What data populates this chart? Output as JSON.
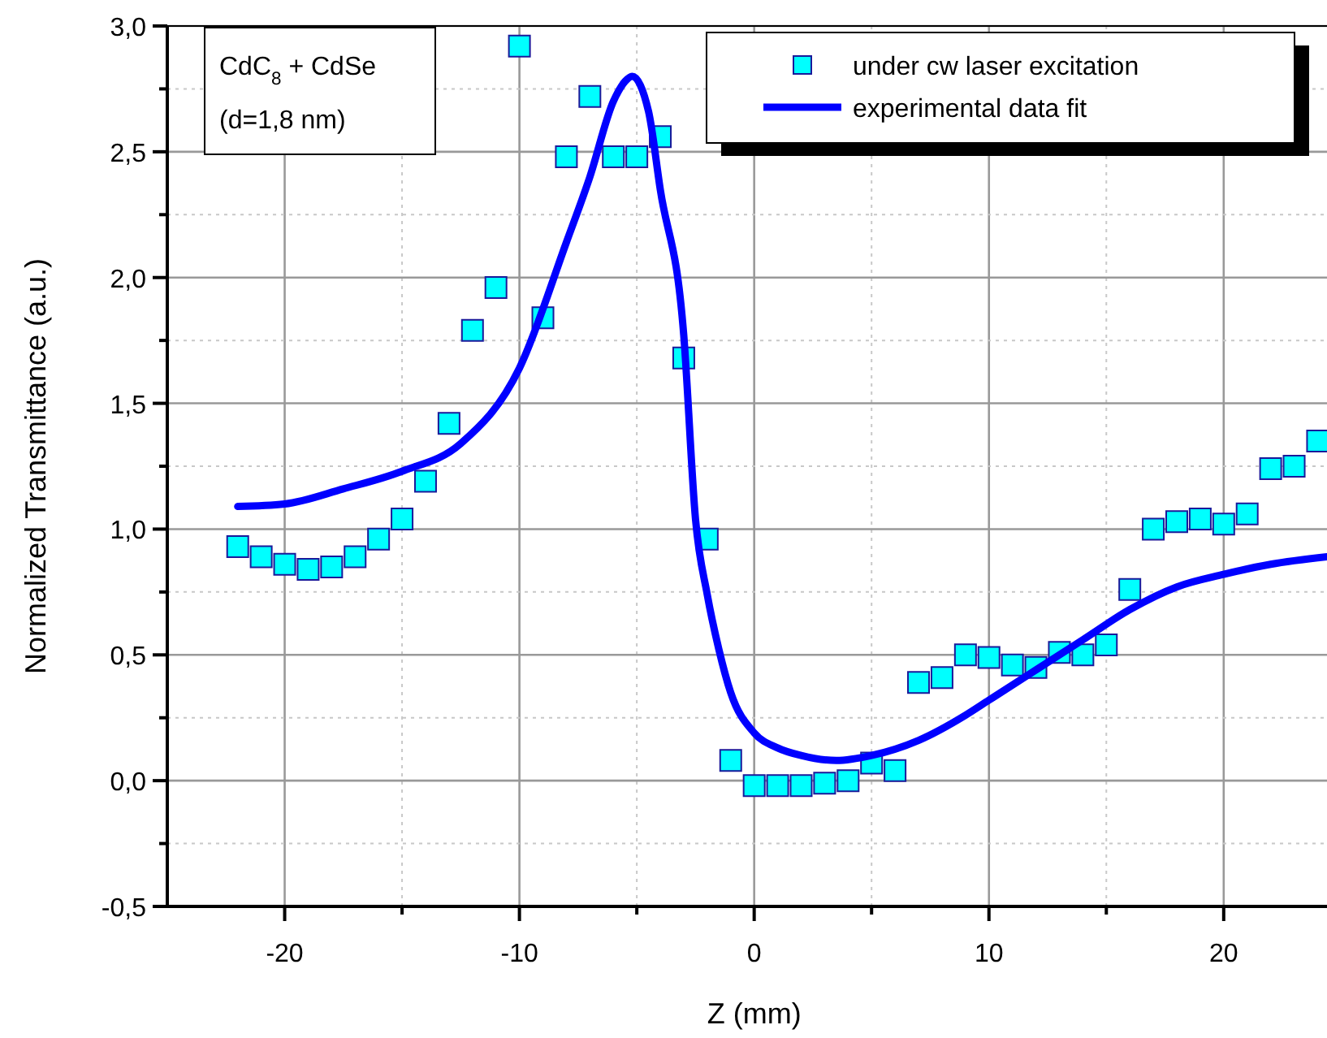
{
  "chart_data": {
    "type": "scatter",
    "xlabel": "Z (mm)",
    "ylabel": "Normalized Transmittance (a.u.)",
    "annotations": [
      "CdC$_{8}$ + CdSe",
      "(d=1,8 nm)"
    ],
    "xlim": [
      -25,
      24.4
    ],
    "ylim": [
      -0.5,
      3.0
    ],
    "xticks": [
      -20,
      {
        "value": -15,
        "label": null
      },
      -10,
      {
        "value": -5,
        "label": null
      },
      0,
      {
        "value": 5,
        "label": null
      },
      10,
      {
        "value": 15,
        "label": null
      },
      20
    ],
    "yticks": [
      {
        "value": -0.5,
        "label": "-0,5"
      },
      {
        "value": -0.25,
        "label": null
      },
      {
        "value": 0,
        "label": "0,0"
      },
      {
        "value": 0.25,
        "label": null
      },
      {
        "value": 0.5,
        "label": "0,5"
      },
      {
        "value": 0.75,
        "label": null
      },
      {
        "value": 1,
        "label": "1,0"
      },
      {
        "value": 1.25,
        "label": null
      },
      {
        "value": 1.5,
        "label": "1,5"
      },
      {
        "value": 1.75,
        "label": null
      },
      {
        "value": 2,
        "label": "2,0"
      },
      {
        "value": 2.25,
        "label": null
      },
      {
        "value": 2.5,
        "label": "2,5"
      },
      {
        "value": 2.75,
        "label": null
      },
      {
        "value": 3,
        "label": "3,0"
      }
    ],
    "grid": true,
    "legend": "top right",
    "series": [
      {
        "name": "under cw laser excitation",
        "marker": "square",
        "color": "#00ffff",
        "x": [
          -22,
          -21,
          -20,
          -19,
          -18,
          -17,
          -16,
          -15,
          -14,
          -13,
          -12,
          -11,
          -10,
          -9,
          -8,
          -7,
          -6,
          -5,
          -4,
          -3,
          -2,
          -1,
          0,
          1,
          2,
          3,
          4,
          5,
          6,
          7,
          8,
          9,
          10,
          11,
          12,
          13,
          14,
          15,
          16,
          17,
          18,
          19,
          20,
          21,
          22,
          23,
          24
        ],
        "values": [
          0.93,
          0.89,
          0.86,
          0.84,
          0.85,
          0.89,
          0.96,
          1.04,
          1.19,
          1.42,
          1.79,
          1.96,
          2.92,
          1.84,
          2.48,
          2.72,
          2.48,
          2.48,
          2.56,
          1.68,
          0.96,
          0.08,
          -0.02,
          -0.02,
          -0.02,
          -0.01,
          0.0,
          0.07,
          0.04,
          0.39,
          0.41,
          0.5,
          0.49,
          0.46,
          0.45,
          0.51,
          0.5,
          0.54,
          0.76,
          1.0,
          1.03,
          1.04,
          1.02,
          1.06,
          1.24,
          1.25,
          1.35
        ]
      },
      {
        "name": "experimental data fit",
        "type": "line",
        "marker": "none",
        "line_style": "solid",
        "color": "#0000ff",
        "x": [
          -22,
          -20,
          -17.5,
          -15,
          -12.5,
          -10,
          -8,
          -7,
          -6,
          -5.5,
          -5.2,
          -4.5,
          -4,
          -3,
          -2.5,
          -2,
          -1.5,
          -1,
          0,
          1,
          2,
          3.5,
          5,
          7,
          9,
          10,
          12,
          14,
          16,
          18,
          20,
          22,
          24.4
        ],
        "values": [
          1.09,
          1.1,
          1.16,
          1.23,
          1.34,
          1.64,
          2.14,
          2.4,
          2.7,
          2.78,
          2.8,
          2.66,
          2.35,
          1.77,
          1.04,
          0.74,
          0.52,
          0.35,
          0.19,
          0.13,
          0.1,
          0.08,
          0.1,
          0.16,
          0.26,
          0.32,
          0.44,
          0.56,
          0.68,
          0.77,
          0.82,
          0.86,
          0.89
        ]
      }
    ]
  }
}
